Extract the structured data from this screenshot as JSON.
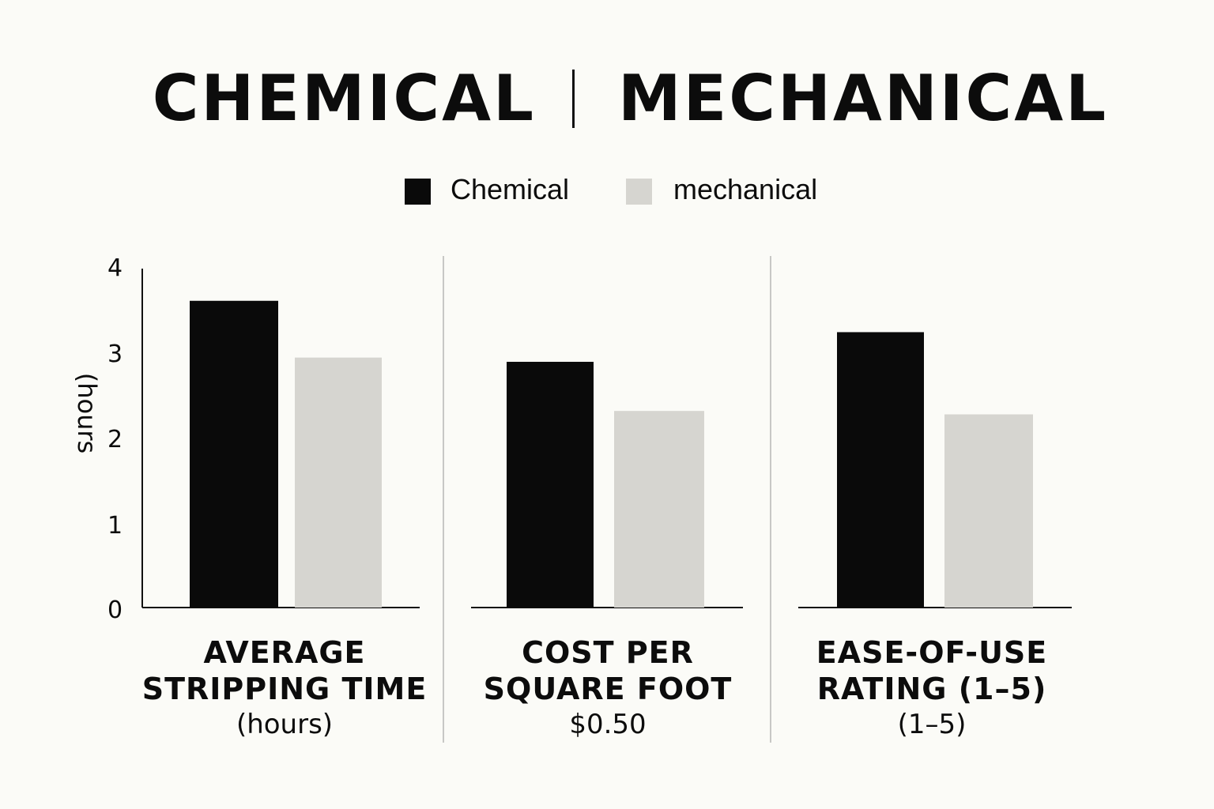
{
  "title": {
    "left": "CHEMICAL",
    "right": "MECHANICAL"
  },
  "legend": [
    {
      "label": "Chemical",
      "color": "#0a0a0a"
    },
    {
      "label": "mechanical",
      "color": "#d6d5d0"
    }
  ],
  "colors": {
    "chemical": "#0a0a0a",
    "mechanical": "#d6d5d0",
    "divider": "#c8c8c5",
    "axis": "#111111",
    "background": "#fbfbf7"
  },
  "chart_data": {
    "type": "bar",
    "ylabel": "(hours",
    "yticks": [
      "0",
      "1",
      "2",
      "3",
      "4"
    ],
    "ylim": [
      0,
      4
    ],
    "grid": false,
    "legend_position": "top",
    "categories": [
      {
        "lines": [
          "AVERAGE",
          "STRIPPING TIME"
        ],
        "sub": "(hours)"
      },
      {
        "lines": [
          "COST PER",
          "SQUARE FOOT"
        ],
        "sub": "$0.50"
      },
      {
        "lines": [
          "EASE-OF-USE",
          "RATING (1–5)"
        ],
        "sub": "(1–5)"
      }
    ],
    "series": [
      {
        "name": "Chemical",
        "values": [
          3.62,
          2.9,
          3.25
        ]
      },
      {
        "name": "mechanical",
        "values": [
          2.95,
          2.32,
          2.28
        ]
      }
    ]
  }
}
